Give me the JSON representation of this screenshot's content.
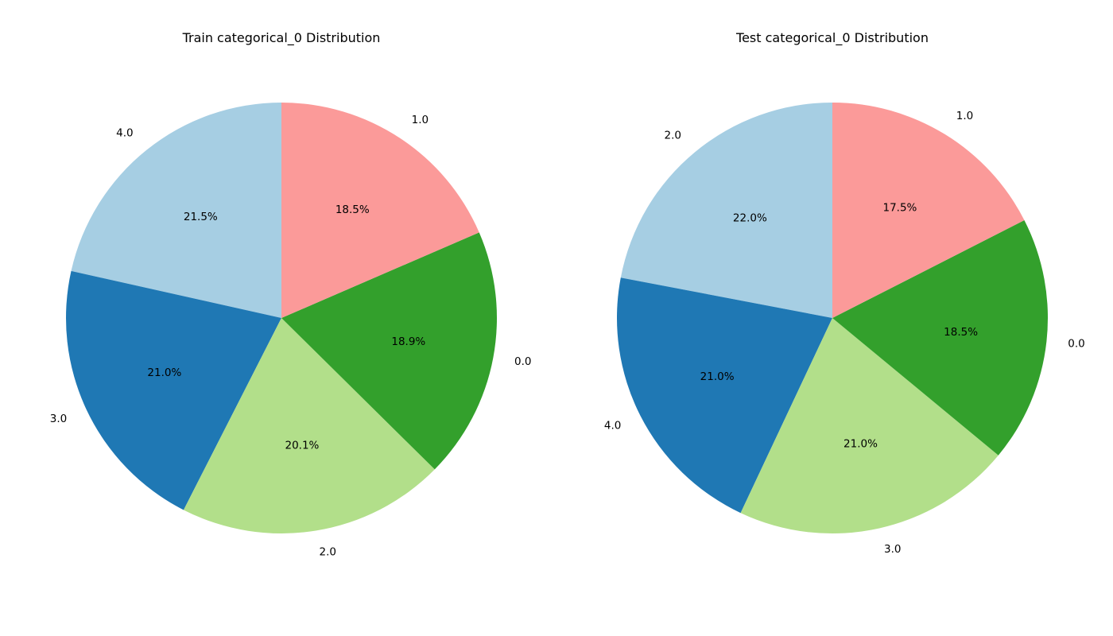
{
  "chart_data": [
    {
      "type": "pie",
      "title": "Train categorical_0 Distribution",
      "start_angle_deg": 90,
      "direction": "counterclockwise",
      "slices": [
        {
          "label": "4.0",
          "value": 21.5,
          "pct_label": "21.5%",
          "color": "#a6cee3"
        },
        {
          "label": "3.0",
          "value": 21.0,
          "pct_label": "21.0%",
          "color": "#1f78b4"
        },
        {
          "label": "2.0",
          "value": 20.1,
          "pct_label": "20.1%",
          "color": "#b2df8a"
        },
        {
          "label": "0.0",
          "value": 18.9,
          "pct_label": "18.9%",
          "color": "#33a02c"
        },
        {
          "label": "1.0",
          "value": 18.5,
          "pct_label": "18.5%",
          "color": "#fb9a99"
        }
      ]
    },
    {
      "type": "pie",
      "title": "Test categorical_0 Distribution",
      "start_angle_deg": 90,
      "direction": "counterclockwise",
      "slices": [
        {
          "label": "2.0",
          "value": 22.0,
          "pct_label": "22.0%",
          "color": "#a6cee3"
        },
        {
          "label": "4.0",
          "value": 21.0,
          "pct_label": "21.0%",
          "color": "#1f78b4"
        },
        {
          "label": "3.0",
          "value": 21.0,
          "pct_label": "21.0%",
          "color": "#b2df8a"
        },
        {
          "label": "0.0",
          "value": 18.5,
          "pct_label": "18.5%",
          "color": "#33a02c"
        },
        {
          "label": "1.0",
          "value": 17.5,
          "pct_label": "17.5%",
          "color": "#fb9a99"
        }
      ]
    }
  ]
}
